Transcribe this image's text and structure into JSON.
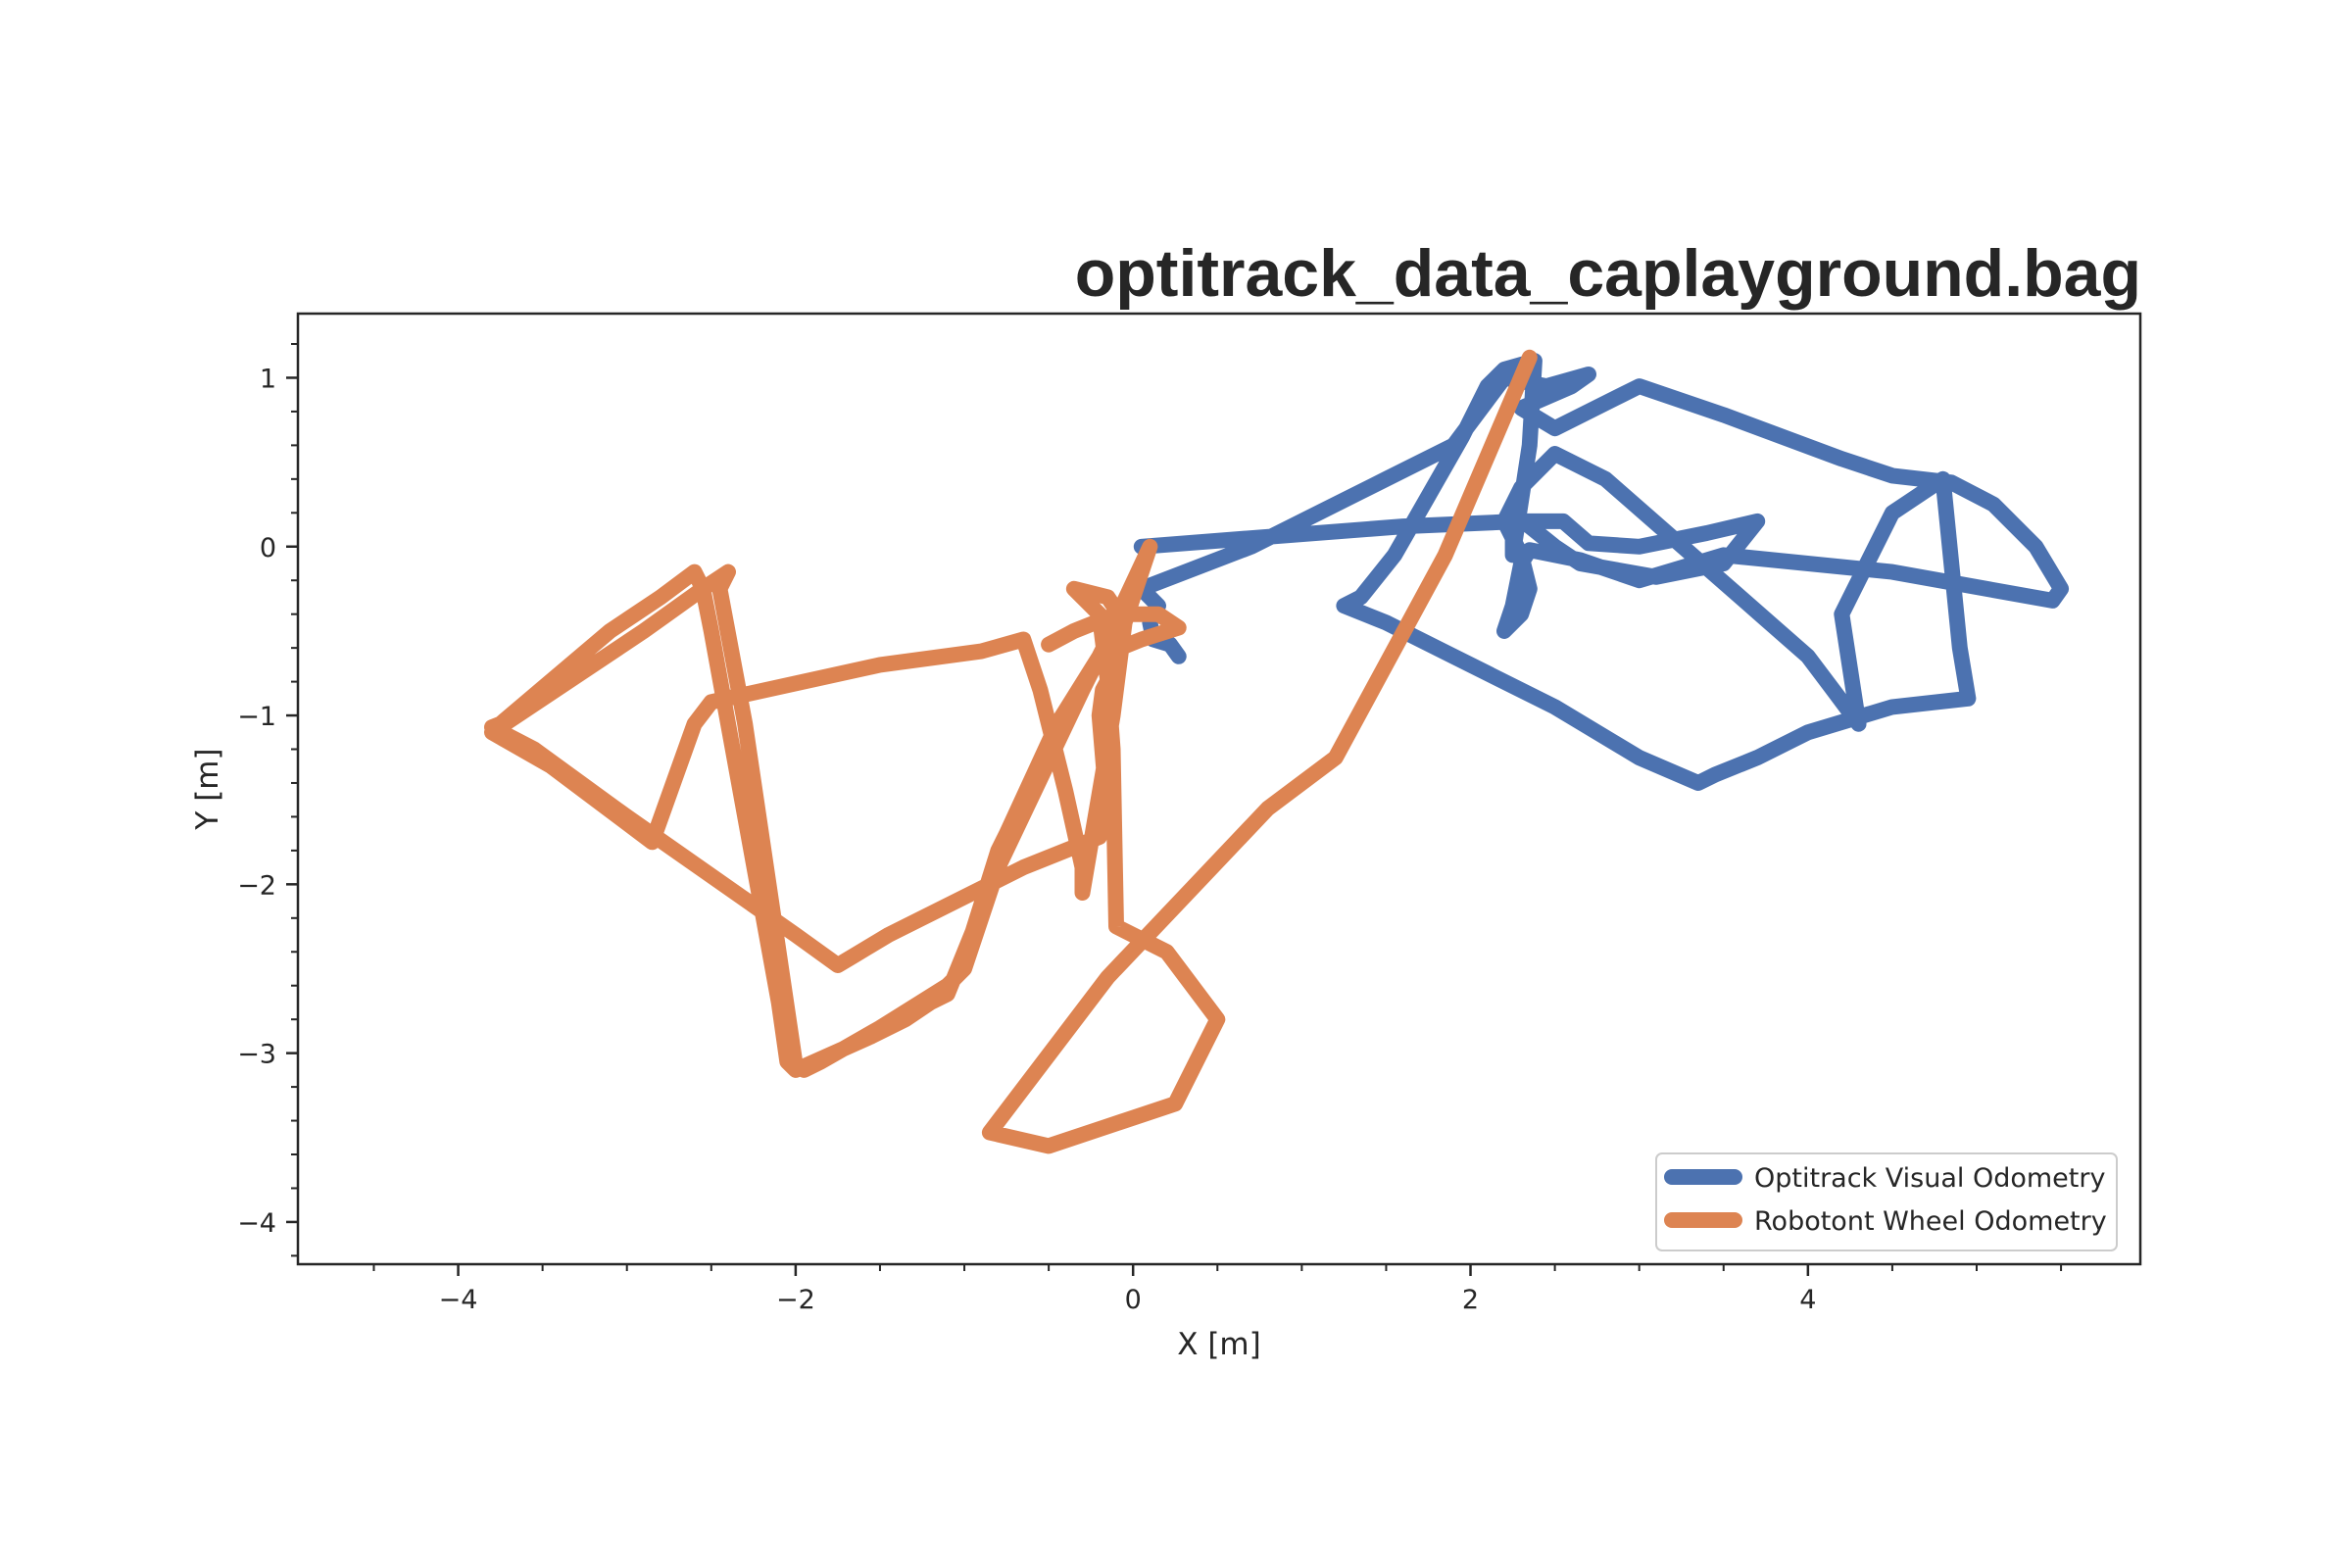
{
  "chart_data": {
    "type": "line",
    "title": "optitrack_data_caplayground.bag",
    "xlabel": "X [m]",
    "ylabel": "Y [m]",
    "xlim": [
      -4.95,
      5.97
    ],
    "ylim": [
      -4.25,
      1.38
    ],
    "x_ticks": [
      -4,
      -2,
      0,
      2,
      4
    ],
    "y_ticks": [
      -4,
      -3,
      -2,
      -1,
      0,
      1
    ],
    "x_tick_labels": [
      "−4",
      "−2",
      "0",
      "2",
      "4"
    ],
    "y_tick_labels": [
      "−4",
      "−3",
      "−2",
      "−1",
      "0",
      "1"
    ],
    "x_minor_step": 0.5,
    "y_minor_step": 0.2,
    "grid": false,
    "legend_position": "lower-right",
    "series": [
      {
        "name": "Optitrack Visual Odometry",
        "color": "#4c72b0",
        "points": [
          [
            0.27,
            -0.65
          ],
          [
            0.22,
            -0.58
          ],
          [
            0.12,
            -0.55
          ],
          [
            0.1,
            -0.45
          ],
          [
            0.15,
            -0.35
          ],
          [
            0.05,
            -0.25
          ],
          [
            0.7,
            0
          ],
          [
            1.5,
            0.4
          ],
          [
            1.9,
            0.6
          ],
          [
            2.05,
            0.8
          ],
          [
            2.2,
            1.0
          ],
          [
            2.45,
            0.95
          ],
          [
            2.7,
            1.02
          ],
          [
            2.6,
            0.95
          ],
          [
            2.3,
            0.82
          ],
          [
            2.5,
            0.7
          ],
          [
            2.9,
            0.9
          ],
          [
            3.0,
            0.95
          ],
          [
            3.5,
            0.78
          ],
          [
            4.2,
            0.52
          ],
          [
            4.5,
            0.42
          ],
          [
            4.85,
            0.38
          ],
          [
            5.1,
            0.25
          ],
          [
            5.35,
            0.0
          ],
          [
            5.5,
            -0.25
          ],
          [
            5.45,
            -0.32
          ],
          [
            4.5,
            -0.15
          ],
          [
            3.5,
            -0.05
          ],
          [
            3.0,
            -0.2
          ],
          [
            2.65,
            -0.08
          ],
          [
            2.35,
            -0.02
          ],
          [
            2.3,
            -0.1
          ],
          [
            2.25,
            -0.35
          ],
          [
            2.2,
            -0.5
          ],
          [
            2.3,
            -0.4
          ],
          [
            2.35,
            -0.25
          ],
          [
            2.3,
            -0.05
          ],
          [
            2.2,
            0.15
          ],
          [
            2.3,
            0.35
          ],
          [
            2.5,
            0.55
          ],
          [
            2.8,
            0.4
          ],
          [
            3.2,
            0.05
          ],
          [
            3.6,
            -0.3
          ],
          [
            4.0,
            -0.65
          ],
          [
            4.15,
            -0.85
          ],
          [
            4.3,
            -1.05
          ],
          [
            4.2,
            -0.4
          ],
          [
            4.3,
            -0.2
          ],
          [
            4.5,
            0.2
          ],
          [
            4.8,
            0.4
          ],
          [
            4.9,
            -0.6
          ],
          [
            4.95,
            -0.9
          ],
          [
            4.5,
            -0.95
          ],
          [
            4.0,
            -1.1
          ],
          [
            3.7,
            -1.25
          ],
          [
            3.45,
            -1.35
          ],
          [
            3.35,
            -1.4
          ],
          [
            3.0,
            -1.25
          ],
          [
            2.5,
            -0.95
          ],
          [
            1.9,
            -0.65
          ],
          [
            1.5,
            -0.45
          ],
          [
            1.25,
            -0.35
          ],
          [
            1.35,
            -0.3
          ],
          [
            1.55,
            -0.05
          ],
          [
            1.75,
            0.3
          ],
          [
            1.95,
            0.65
          ],
          [
            2.1,
            0.95
          ],
          [
            2.2,
            1.05
          ],
          [
            2.38,
            1.1
          ],
          [
            2.35,
            0.6
          ],
          [
            2.25,
            -0.05
          ],
          [
            2.25,
            0.2
          ],
          [
            2.5,
            0.0
          ],
          [
            2.65,
            -0.1
          ],
          [
            3.1,
            -0.18
          ],
          [
            3.5,
            -0.1
          ],
          [
            3.7,
            0.15
          ],
          [
            3.4,
            0.08
          ],
          [
            3.0,
            0.0
          ],
          [
            2.7,
            0.02
          ],
          [
            2.55,
            0.15
          ],
          [
            2.3,
            0.15
          ],
          [
            1.6,
            0.12
          ],
          [
            0.05,
            0.0
          ]
        ]
      },
      {
        "name": "Robotont Wheel Odometry",
        "color": "#dd8452",
        "points": [
          [
            -0.5,
            -0.58
          ],
          [
            -0.35,
            -0.5
          ],
          [
            -0.1,
            -0.4
          ],
          [
            0.15,
            -0.4
          ],
          [
            0.27,
            -0.48
          ],
          [
            0.05,
            -0.55
          ],
          [
            -0.2,
            -0.65
          ],
          [
            -0.45,
            -1.05
          ],
          [
            -0.75,
            -1.7
          ],
          [
            -0.8,
            -1.8
          ],
          [
            -0.95,
            -2.28
          ],
          [
            -1.1,
            -2.65
          ],
          [
            -1.2,
            -2.7
          ],
          [
            -1.35,
            -2.8
          ],
          [
            -1.55,
            -2.9
          ],
          [
            -2.0,
            -3.1
          ],
          [
            -2.05,
            -3.05
          ],
          [
            -2.1,
            -2.7
          ],
          [
            -2.5,
            -0.5
          ],
          [
            -2.55,
            -0.25
          ],
          [
            -2.6,
            -0.15
          ],
          [
            -2.8,
            -0.3
          ],
          [
            -3.1,
            -0.5
          ],
          [
            -3.75,
            -1.05
          ],
          [
            -3.8,
            -1.07
          ],
          [
            -3.55,
            -1.2
          ],
          [
            -3.0,
            -1.6
          ],
          [
            -2.0,
            -2.3
          ],
          [
            -1.75,
            -2.48
          ],
          [
            -1.65,
            -2.42
          ],
          [
            -1.45,
            -2.3
          ],
          [
            -0.65,
            -1.9
          ],
          [
            -0.2,
            -1.72
          ],
          [
            -0.15,
            -1.6
          ],
          [
            -0.2,
            -1.0
          ],
          [
            -0.18,
            -0.85
          ],
          [
            -0.1,
            -0.7
          ],
          [
            -0.05,
            -0.45
          ],
          [
            0.1,
            0.0
          ],
          [
            -0.05,
            -0.32
          ],
          [
            -0.15,
            -0.55
          ],
          [
            -0.3,
            -0.85
          ],
          [
            -0.8,
            -1.9
          ],
          [
            -1.0,
            -2.5
          ],
          [
            -1.1,
            -2.6
          ],
          [
            -1.5,
            -2.85
          ],
          [
            -1.85,
            -3.05
          ],
          [
            -1.95,
            -3.1
          ],
          [
            -2.0,
            -3.08
          ],
          [
            -2.3,
            -1.05
          ],
          [
            -2.45,
            -0.25
          ],
          [
            -2.4,
            -0.15
          ],
          [
            -2.55,
            -0.25
          ],
          [
            -2.9,
            -0.5
          ],
          [
            -3.8,
            -1.1
          ],
          [
            -3.45,
            -1.3
          ],
          [
            -2.85,
            -1.75
          ],
          [
            -2.6,
            -1.05
          ],
          [
            -2.5,
            -0.92
          ],
          [
            -1.5,
            -0.7
          ],
          [
            -0.9,
            -0.62
          ],
          [
            -0.65,
            -0.55
          ],
          [
            -0.55,
            -0.85
          ],
          [
            -0.4,
            -1.45
          ],
          [
            -0.3,
            -1.9
          ],
          [
            -0.3,
            -2.05
          ],
          [
            -0.12,
            -1.0
          ],
          [
            -0.05,
            -0.45
          ],
          [
            -0.15,
            -0.3
          ],
          [
            -0.35,
            -0.25
          ],
          [
            -0.2,
            -0.4
          ],
          [
            -0.15,
            -0.8
          ],
          [
            -0.12,
            -1.2
          ],
          [
            -0.1,
            -2.25
          ],
          [
            0.2,
            -2.4
          ],
          [
            0.5,
            -2.8
          ],
          [
            0.25,
            -3.3
          ],
          [
            -0.5,
            -3.55
          ],
          [
            -0.85,
            -3.47
          ],
          [
            -0.15,
            -2.55
          ],
          [
            0.8,
            -1.55
          ],
          [
            1.2,
            -1.25
          ],
          [
            1.85,
            -0.05
          ],
          [
            2.35,
            1.12
          ]
        ]
      }
    ]
  }
}
